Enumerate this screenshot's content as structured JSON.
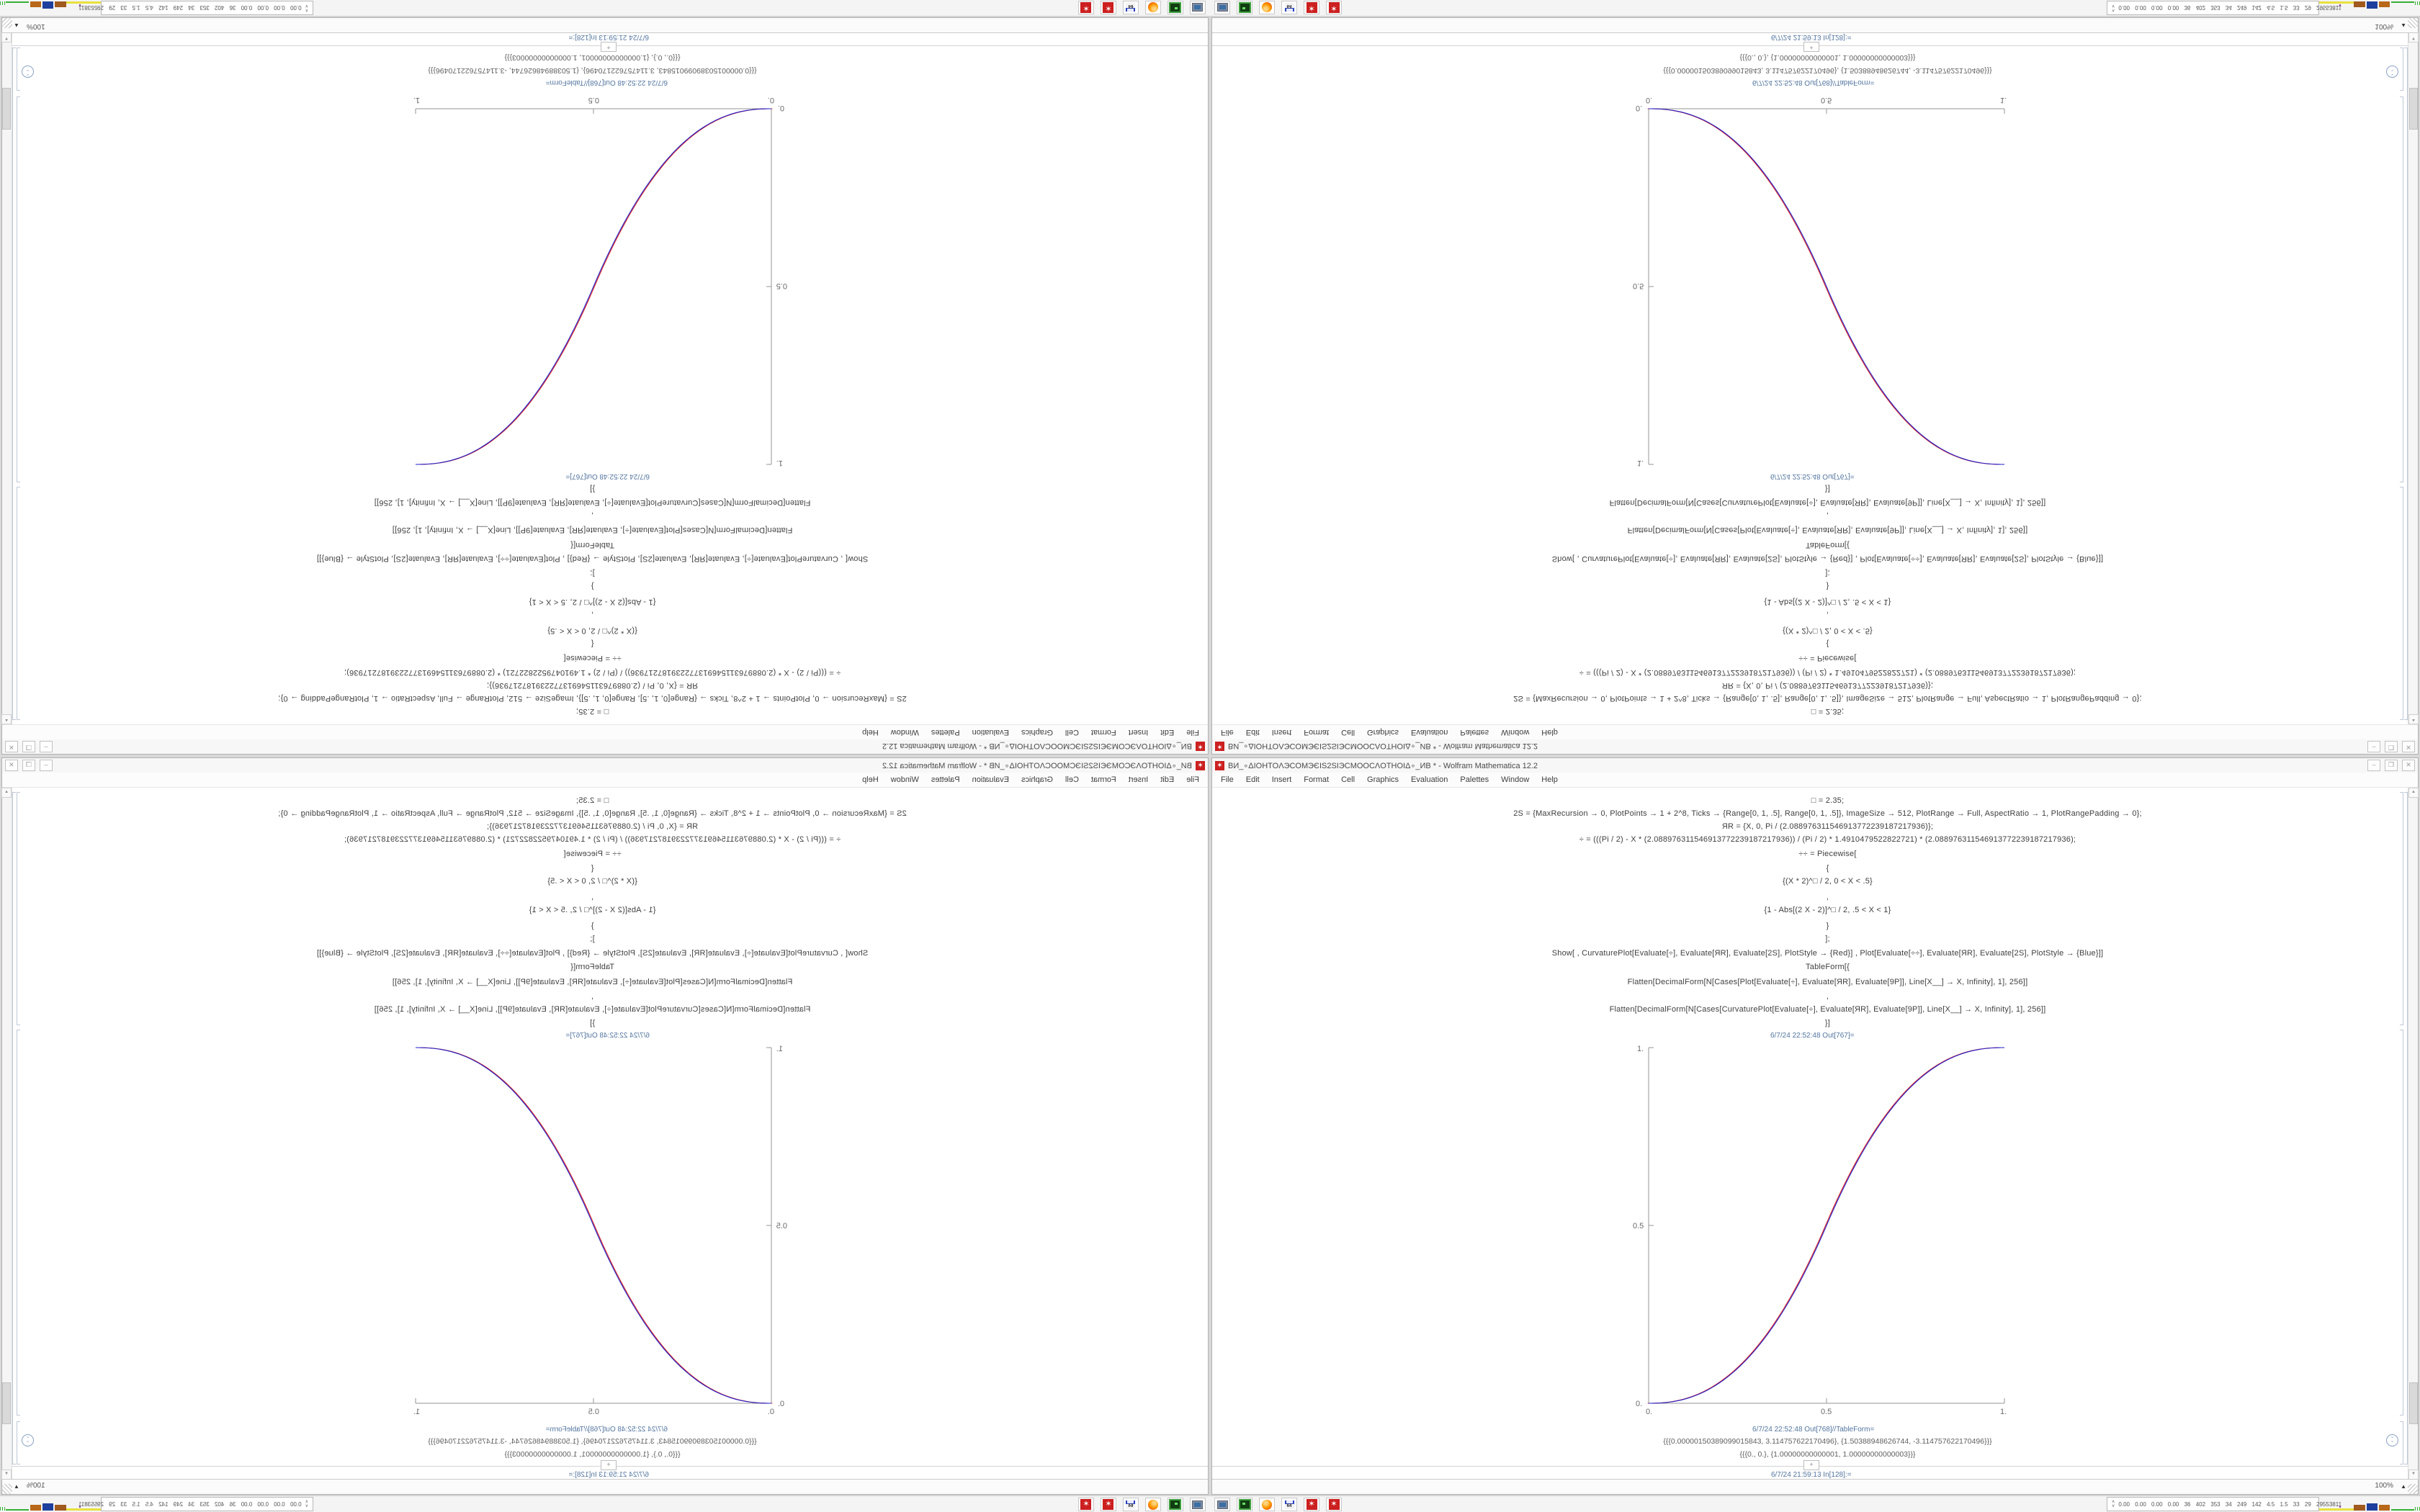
{
  "win": {
    "title": "ВИ_∘ΔIOHTOΛЭCOMЭЄIS2SIЭCMOOCΛOTHOIΔ∘_ИВ * - Wolfram Mathematica 12.2",
    "menu": [
      "File",
      "Edit",
      "Insert",
      "Format",
      "Cell",
      "Graphics",
      "Evaluation",
      "Palettes",
      "Window",
      "Help"
    ],
    "controls": {
      "minimize": "–",
      "maximize": "❒",
      "close": "✕"
    },
    "magnification": "100%",
    "mag_arrow": "▲",
    "scroll_up": "▲",
    "scroll_down": "▼",
    "spikey_glyph": "✶",
    "scrolldown_badge": "«"
  },
  "nb": {
    "lines": [
      "□ = 2.35;",
      "2S = {MaxRecursion → 0, PlotPoints → 1 + 2^8, Ticks → {Range[0, 1, .5], Range[0, 1, .5]}, ImageSize → 512, PlotRange → Full, AspectRatio → 1, PlotRangePadding → 0};",
      "ЯR = {X, 0, Pi / (2.088976311546913772239187217936)};",
      "÷ = (((Pi / 2) - X * (2.088976311546913772239187217936)) / (Pi / 2) * 1.4910479522822721) * (2.088976311546913772239187217936);",
      "÷÷ = Piecewise[",
      "{",
      "{(X * 2)^□ / 2, 0 < X < .5}",
      ",",
      "{1 - Abs[(2 X - 2)]^□ / 2, .5 < X < 1}",
      "}",
      "];",
      "Show[ , CurvaturePlot[Evaluate[÷], Evaluate[ЯR], Evaluate[2S], PlotStyle → {Red}] , Plot[Evaluate[÷÷], Evaluate[ЯR], Evaluate[2S], PlotStyle → {Blue}]]",
      "TableForm[{",
      "Flatten[DecimalForm[N[Cases[Plot[Evaluate[÷], Evaluate[ЯR], Evaluate[9P]], Line[X__] → X, Infinity], 1], 256]]",
      ",",
      "Flatten[DecimalForm[N[Cases[CurvaturePlot[Evaluate[÷], Evaluate[ЯR], Evaluate[9P]], Line[X__] → X, Infinity], 1], 256]]",
      "}]"
    ],
    "out1_label": "6/7/24 22:52:48 Out[767]=",
    "out2_label": "6/7/24 22:52:48 Out[768]//TableForm=",
    "out2_line1": "{{{0.00000150389099015843, 3.114757622170496}, {1.50388948626744, -3.114757622170496}}}",
    "out2_line2": "{{{0., 0.}, {1.00000000000001, 1.00000000000003}}}",
    "next_in_label": "6/7/24 21:59:13 In[128]:=",
    "insert_plus": "+"
  },
  "chart_data": {
    "type": "line",
    "title": "",
    "xlabel": "",
    "ylabel": "",
    "xlim": [
      0,
      1
    ],
    "ylim": [
      0,
      1
    ],
    "xticks": [
      "0.",
      "0.5",
      "1."
    ],
    "yticks": [
      "0.",
      "0.5",
      "1."
    ],
    "grid": false,
    "legend_position": "none",
    "function": "piecewise: y=(2x)^p/2 for 0<x<0.5 ; y=1-|2x-2|^p/2 for 0.5<x<1",
    "exponent": 2.35,
    "x_samples": [
      0,
      0.1,
      0.2,
      0.3,
      0.4,
      0.5,
      0.6,
      0.7,
      0.8,
      0.9,
      1
    ],
    "y_samples": [
      0,
      0.0114,
      0.058,
      0.1505,
      0.296,
      0.5,
      0.704,
      0.8495,
      0.942,
      0.9886,
      1
    ],
    "series": [
      {
        "name": "CurvaturePlot ÷ (Red)",
        "color": "#dd2020",
        "dx": -1.3
      },
      {
        "name": "Plot ÷÷ (Blue)",
        "color": "#2222cc",
        "dx": 0
      }
    ]
  },
  "taskbar": {
    "icons": [
      {
        "name": "screenshot-tool-icon"
      },
      {
        "name": "terminal-icon"
      },
      {
        "name": "firefox-icon"
      },
      {
        "name": "floppy-64-icon",
        "label": "64"
      },
      {
        "name": "mathematica-spikey-icon"
      },
      {
        "name": "mathematica-spikey-icon-2"
      }
    ],
    "monitor_text": "0.00 0.00 0.00 0.00 36 402 353 34 249 142 4.5 1.5 33 29 29553811"
  },
  "colors": {
    "accent_red": "#cc2020",
    "curve_red": "#dd2020",
    "curve_blue": "#2222cc",
    "cell_label_blue": "#53759f",
    "bracket_gray": "#bdc8d8"
  }
}
